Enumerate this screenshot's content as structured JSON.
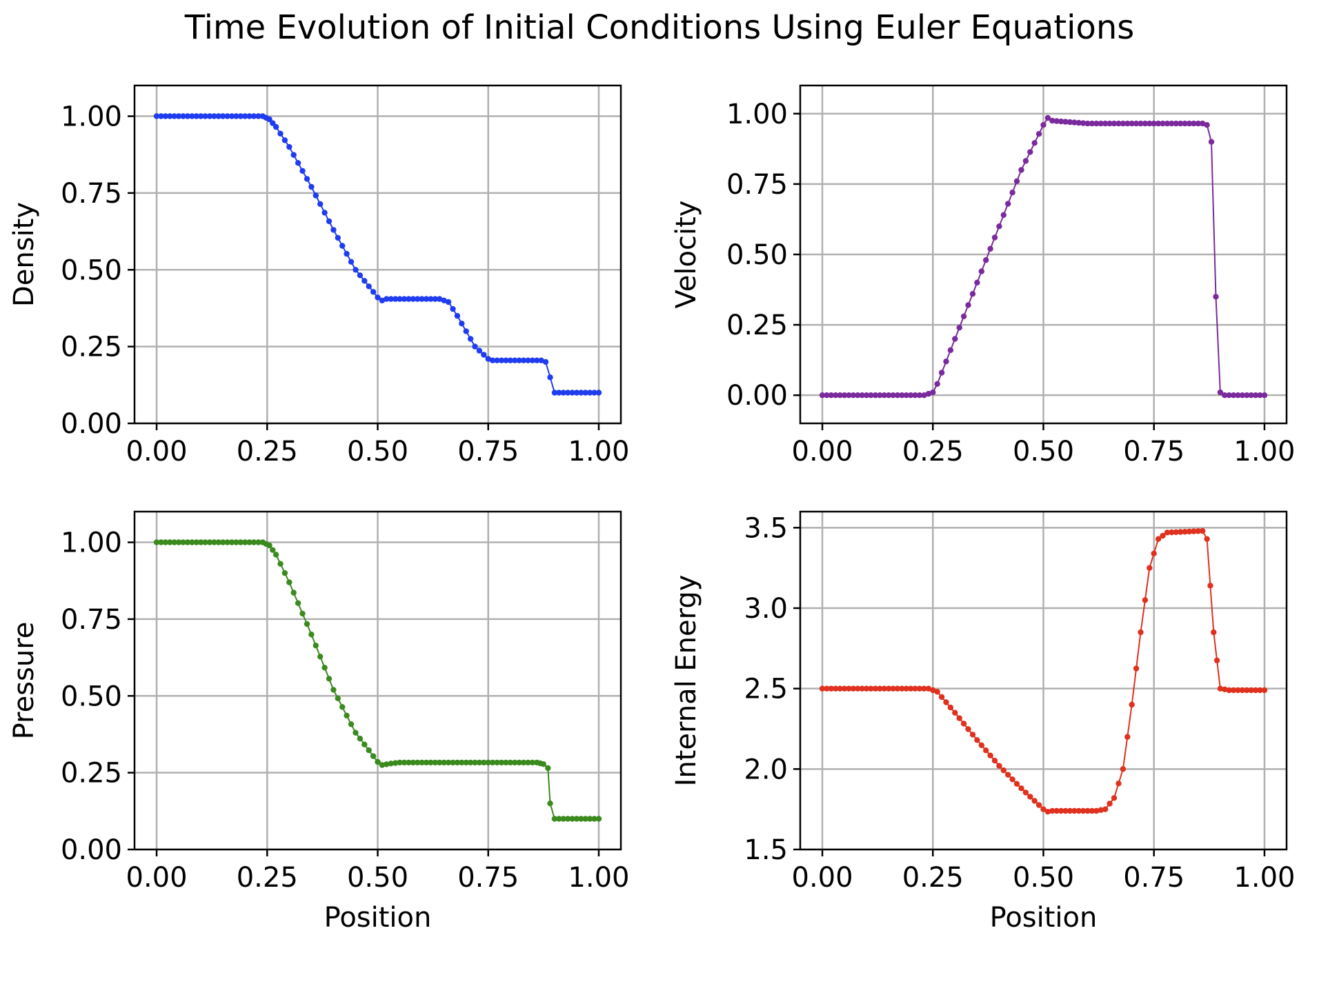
{
  "figure": {
    "title": "Time Evolution of Initial Conditions Using Euler Equations"
  },
  "chart_data": [
    {
      "type": "line",
      "panel": "top-left",
      "ylabel": "Density",
      "xlabel": "",
      "color": "#1f3cf0",
      "xlim": [
        -0.05,
        1.05
      ],
      "ylim": [
        0.0,
        1.1
      ],
      "xticks": [
        0.0,
        0.25,
        0.5,
        0.75,
        1.0
      ],
      "yticks": [
        0.0,
        0.25,
        0.5,
        0.75,
        1.0
      ],
      "xtick_labels": [
        "0.00",
        "0.25",
        "0.50",
        "0.75",
        "1.00"
      ],
      "ytick_labels": [
        "0.00",
        "0.25",
        "0.50",
        "0.75",
        "1.00"
      ],
      "grid": true,
      "points": [
        [
          0.0,
          1.0
        ],
        [
          0.24,
          1.0
        ],
        [
          0.255,
          0.99
        ],
        [
          0.27,
          0.965
        ],
        [
          0.3,
          0.9
        ],
        [
          0.35,
          0.77
        ],
        [
          0.4,
          0.63
        ],
        [
          0.45,
          0.5
        ],
        [
          0.5,
          0.41
        ],
        [
          0.51,
          0.4
        ],
        [
          0.52,
          0.405
        ],
        [
          0.64,
          0.405
        ],
        [
          0.66,
          0.395
        ],
        [
          0.68,
          0.35
        ],
        [
          0.72,
          0.25
        ],
        [
          0.75,
          0.21
        ],
        [
          0.76,
          0.205
        ],
        [
          0.87,
          0.205
        ],
        [
          0.88,
          0.2
        ],
        [
          0.89,
          0.15
        ],
        [
          0.9,
          0.1
        ],
        [
          1.0,
          0.1
        ]
      ]
    },
    {
      "type": "line",
      "panel": "top-right",
      "ylabel": "Velocity",
      "xlabel": "",
      "color": "#7a2a9c",
      "xlim": [
        -0.05,
        1.05
      ],
      "ylim": [
        -0.1,
        1.1
      ],
      "xticks": [
        0.0,
        0.25,
        0.5,
        0.75,
        1.0
      ],
      "yticks": [
        0.0,
        0.25,
        0.5,
        0.75,
        1.0
      ],
      "xtick_labels": [
        "0.00",
        "0.25",
        "0.50",
        "0.75",
        "1.00"
      ],
      "ytick_labels": [
        "0.00",
        "0.25",
        "0.50",
        "0.75",
        "1.00"
      ],
      "grid": true,
      "points": [
        [
          0.0,
          0.0
        ],
        [
          0.23,
          0.0
        ],
        [
          0.25,
          0.01
        ],
        [
          0.26,
          0.04
        ],
        [
          0.3,
          0.2
        ],
        [
          0.35,
          0.4
        ],
        [
          0.4,
          0.6
        ],
        [
          0.45,
          0.8
        ],
        [
          0.5,
          0.96
        ],
        [
          0.51,
          0.985
        ],
        [
          0.52,
          0.975
        ],
        [
          0.6,
          0.965
        ],
        [
          0.86,
          0.965
        ],
        [
          0.87,
          0.96
        ],
        [
          0.88,
          0.9
        ],
        [
          0.89,
          0.35
        ],
        [
          0.9,
          0.01
        ],
        [
          0.91,
          0.0
        ],
        [
          1.0,
          0.0
        ]
      ]
    },
    {
      "type": "line",
      "panel": "bottom-left",
      "ylabel": "Pressure",
      "xlabel": "Position",
      "color": "#3a8a1e",
      "xlim": [
        -0.05,
        1.05
      ],
      "ylim": [
        0.0,
        1.1
      ],
      "xticks": [
        0.0,
        0.25,
        0.5,
        0.75,
        1.0
      ],
      "yticks": [
        0.0,
        0.25,
        0.5,
        0.75,
        1.0
      ],
      "xtick_labels": [
        "0.00",
        "0.25",
        "0.50",
        "0.75",
        "1.00"
      ],
      "ytick_labels": [
        "0.00",
        "0.25",
        "0.50",
        "0.75",
        "1.00"
      ],
      "grid": true,
      "points": [
        [
          0.0,
          1.0
        ],
        [
          0.24,
          1.0
        ],
        [
          0.255,
          0.99
        ],
        [
          0.27,
          0.96
        ],
        [
          0.3,
          0.87
        ],
        [
          0.35,
          0.7
        ],
        [
          0.4,
          0.52
        ],
        [
          0.45,
          0.38
        ],
        [
          0.5,
          0.285
        ],
        [
          0.51,
          0.275
        ],
        [
          0.53,
          0.28
        ],
        [
          0.55,
          0.283
        ],
        [
          0.86,
          0.283
        ],
        [
          0.875,
          0.278
        ],
        [
          0.885,
          0.265
        ],
        [
          0.89,
          0.15
        ],
        [
          0.9,
          0.1
        ],
        [
          1.0,
          0.1
        ]
      ]
    },
    {
      "type": "line",
      "panel": "bottom-right",
      "ylabel": "Internal Energy",
      "xlabel": "Position",
      "color": "#e0301e",
      "xlim": [
        -0.05,
        1.05
      ],
      "ylim": [
        1.5,
        3.6
      ],
      "xticks": [
        0.0,
        0.25,
        0.5,
        0.75,
        1.0
      ],
      "yticks": [
        1.5,
        2.0,
        2.5,
        3.0,
        3.5
      ],
      "xtick_labels": [
        "0.00",
        "0.25",
        "0.50",
        "0.75",
        "1.00"
      ],
      "ytick_labels": [
        "1.5",
        "2.0",
        "2.5",
        "3.0",
        "3.5"
      ],
      "grid": true,
      "points": [
        [
          0.0,
          2.5
        ],
        [
          0.24,
          2.5
        ],
        [
          0.26,
          2.48
        ],
        [
          0.3,
          2.35
        ],
        [
          0.35,
          2.18
        ],
        [
          0.4,
          2.02
        ],
        [
          0.45,
          1.88
        ],
        [
          0.5,
          1.75
        ],
        [
          0.51,
          1.735
        ],
        [
          0.52,
          1.74
        ],
        [
          0.62,
          1.74
        ],
        [
          0.64,
          1.75
        ],
        [
          0.66,
          1.82
        ],
        [
          0.68,
          2.0
        ],
        [
          0.7,
          2.4
        ],
        [
          0.72,
          2.85
        ],
        [
          0.74,
          3.25
        ],
        [
          0.76,
          3.43
        ],
        [
          0.78,
          3.47
        ],
        [
          0.86,
          3.48
        ],
        [
          0.87,
          3.43
        ],
        [
          0.885,
          2.85
        ],
        [
          0.9,
          2.5
        ],
        [
          0.92,
          2.49
        ],
        [
          1.0,
          2.49
        ]
      ]
    }
  ]
}
